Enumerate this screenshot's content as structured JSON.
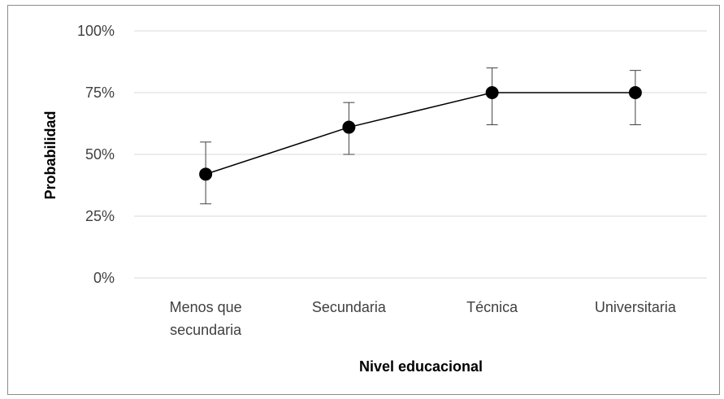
{
  "chart_data": {
    "type": "line",
    "title": "",
    "xlabel": "Nivel educacional",
    "ylabel": "Probabilidad",
    "categories": [
      "Menos que secundaria",
      "Secundaria",
      "Técnica",
      "Universitaria"
    ],
    "category_lines": [
      [
        "Menos que",
        "secundaria"
      ],
      [
        "Secundaria"
      ],
      [
        "Técnica"
      ],
      [
        "Universitaria"
      ]
    ],
    "series": [
      {
        "values": [
          0.42,
          0.61,
          0.75,
          0.75
        ],
        "error_low": [
          0.3,
          0.5,
          0.62,
          0.62
        ],
        "error_high": [
          0.55,
          0.71,
          0.85,
          0.84
        ]
      }
    ],
    "ylim": [
      0,
      1
    ],
    "yticks": [
      {
        "value": 0,
        "label": "0%"
      },
      {
        "value": 0.25,
        "label": "25%"
      },
      {
        "value": 0.5,
        "label": "50%"
      },
      {
        "value": 0.75,
        "label": "75%"
      },
      {
        "value": 1,
        "label": "100%"
      }
    ],
    "grid": true,
    "legend": "none",
    "colors": {
      "series": "#000000",
      "grid": "#d9d9d9",
      "error_bar": "#404040",
      "frame": "#8c8c8c"
    }
  }
}
